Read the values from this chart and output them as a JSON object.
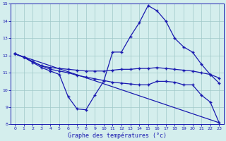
{
  "xlabel": "Graphe des températures (°c)",
  "bg_color": "#d4eeed",
  "grid_color": "#a0c8c8",
  "line_color": "#1a1ab0",
  "xlim": [
    -0.5,
    23.5
  ],
  "ylim": [
    8,
    15
  ],
  "yticks": [
    8,
    9,
    10,
    11,
    12,
    13,
    14,
    15
  ],
  "xticks": [
    0,
    1,
    2,
    3,
    4,
    5,
    6,
    7,
    8,
    9,
    10,
    11,
    12,
    13,
    14,
    15,
    16,
    17,
    18,
    19,
    20,
    21,
    22,
    23
  ],
  "line1_x": [
    0,
    1,
    2,
    3,
    4,
    5,
    6,
    7,
    8,
    9,
    10,
    11,
    12,
    13,
    14,
    15,
    16,
    17,
    18,
    19,
    20,
    21,
    22,
    23
  ],
  "line1_y": [
    12.1,
    11.9,
    11.6,
    11.3,
    11.1,
    10.9,
    9.6,
    8.9,
    8.85,
    9.7,
    10.5,
    12.2,
    12.2,
    13.1,
    13.9,
    14.9,
    14.6,
    14.0,
    13.0,
    12.5,
    12.2,
    11.5,
    10.9,
    10.4
  ],
  "line2_x": [
    0,
    1,
    2,
    3,
    4,
    5,
    6,
    7,
    8,
    9,
    10,
    11,
    12,
    13,
    14,
    15,
    16,
    17,
    18,
    19,
    20,
    21,
    22,
    23
  ],
  "line2_y": [
    12.1,
    11.9,
    11.65,
    11.4,
    11.3,
    11.25,
    11.2,
    11.15,
    11.1,
    11.1,
    11.1,
    11.15,
    11.2,
    11.2,
    11.25,
    11.25,
    11.3,
    11.25,
    11.2,
    11.15,
    11.1,
    11.0,
    10.9,
    10.7
  ],
  "line3_x": [
    0,
    23
  ],
  "line3_y": [
    12.1,
    8.1
  ],
  "line4_x": [
    0,
    1,
    2,
    3,
    4,
    5,
    6,
    7,
    8,
    9,
    10,
    11,
    12,
    13,
    14,
    15,
    16,
    17,
    18,
    19,
    20,
    21,
    22,
    23
  ],
  "line4_y": [
    12.1,
    11.9,
    11.65,
    11.4,
    11.2,
    11.1,
    11.0,
    10.85,
    10.75,
    10.65,
    10.55,
    10.45,
    10.4,
    10.35,
    10.3,
    10.3,
    10.5,
    10.5,
    10.45,
    10.3,
    10.3,
    9.7,
    9.3,
    8.1
  ]
}
